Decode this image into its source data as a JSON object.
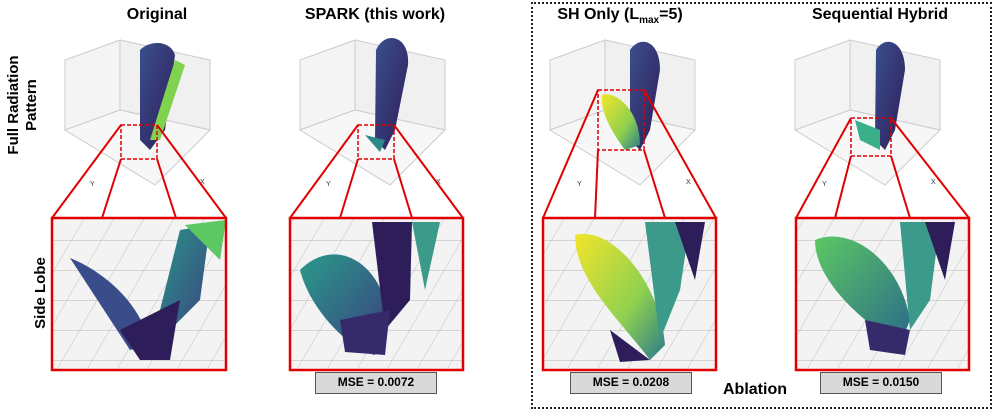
{
  "columns": [
    {
      "title": "Original",
      "mse": null
    },
    {
      "title": "SPARK (this work)",
      "mse": "MSE = 0.0072"
    },
    {
      "title_main": "SH Only (L",
      "title_sub": "max",
      "title_end": "=5)",
      "mse": "MSE = 0.0208"
    },
    {
      "title": "Sequential Hybrid",
      "mse": "MSE = 0.0150"
    }
  ],
  "row_labels": {
    "top": "Full Radiation Pattern",
    "top_line1": "Full Radiation",
    "top_line2": "Pattern",
    "bottom": "Side Lobe"
  },
  "axis_labels": {
    "y": "Y",
    "x": "X"
  },
  "ablation_label": "Ablation",
  "colors": {
    "highlight": "#e00000",
    "viridis_dark": "#3b2a6b",
    "viridis_teal": "#2a8a8a",
    "viridis_green": "#5cc863",
    "viridis_yellow": "#f2e52a"
  }
}
